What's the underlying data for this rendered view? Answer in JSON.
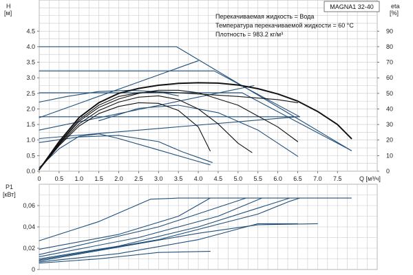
{
  "model_label": "MAGNA1 32-40",
  "annotations": [
    "Перекачиваемая жидкость = Вода",
    "Температура перекачиваемой жидкости = 60 °C",
    "Плотность = 983.2 кг/м³"
  ],
  "colors": {
    "blue": "#1f4e79",
    "black": "#111111",
    "grid": "#c8c8c8",
    "frame": "#888888"
  },
  "chart_data": [
    {
      "type": "line",
      "name": "head_efficiency",
      "xlabel": "Q [м³/ч]",
      "ylabel_left": [
        "H",
        "[м]"
      ],
      "ylabel_right": [
        "eta",
        "[%]"
      ],
      "xlim": [
        0,
        8.5
      ],
      "ylim": [
        0,
        5.5
      ],
      "y2lim": [
        0,
        110
      ],
      "xticks": [
        "0",
        "0.5",
        "1.0",
        "1.5",
        "2.0",
        "2.5",
        "3.0",
        "3.5",
        "4.0",
        "4.5",
        "5.0",
        "5.5",
        "6.0",
        "6.5",
        "7.0",
        "7.5"
      ],
      "xtick_values": [
        0,
        0.5,
        1.0,
        1.5,
        2.0,
        2.5,
        3.0,
        3.5,
        4.0,
        4.5,
        5.0,
        5.5,
        6.0,
        6.5,
        7.0,
        7.5
      ],
      "yticks": [
        "0.0",
        "0.5",
        "1.0",
        "1.5",
        "2.0",
        "2.5",
        "3.0",
        "3.5",
        "4.0",
        "4.5"
      ],
      "ytick_values": [
        0,
        0.5,
        1.0,
        1.5,
        2.0,
        2.5,
        3.0,
        3.5,
        4.0,
        4.5
      ],
      "y2ticks": [
        "0",
        "10",
        "20",
        "30",
        "40",
        "50",
        "60",
        "70",
        "80",
        "90"
      ],
      "y2tick_values": [
        0,
        10,
        20,
        30,
        40,
        50,
        60,
        70,
        80,
        90
      ],
      "grid": true,
      "series": [
        {
          "color": "blue",
          "axis": "left",
          "points": [
            [
              0,
              4.0
            ],
            [
              3.45,
              4.0
            ],
            [
              7.85,
              0.66
            ]
          ]
        },
        {
          "color": "blue",
          "axis": "left",
          "points": [
            [
              0,
              3.22
            ],
            [
              4.4,
              3.22
            ],
            [
              6.55,
              1.75
            ]
          ]
        },
        {
          "color": "blue",
          "axis": "left",
          "points": [
            [
              0,
              2.52
            ],
            [
              5.1,
              2.52
            ],
            [
              7.85,
              0.66
            ]
          ]
        },
        {
          "color": "blue",
          "axis": "left",
          "points": [
            [
              0,
              1.75
            ],
            [
              6.55,
              1.75
            ]
          ]
        },
        {
          "color": "blue",
          "axis": "left",
          "points": [
            [
              0,
              1.72
            ],
            [
              4.0,
              3.55
            ]
          ]
        },
        {
          "color": "blue",
          "axis": "left",
          "points": [
            [
              0,
              2.22
            ],
            [
              0.7,
              2.4
            ],
            [
              1.5,
              2.56
            ],
            [
              2.3,
              2.6
            ],
            [
              3.0,
              2.55
            ],
            [
              3.5,
              2.42
            ]
          ]
        },
        {
          "color": "blue",
          "axis": "left",
          "points": [
            [
              0,
              1.32
            ],
            [
              5.4,
              2.75
            ]
          ]
        },
        {
          "color": "blue",
          "axis": "left",
          "points": [
            [
              0,
              1.05
            ],
            [
              6.5,
              1.75
            ]
          ]
        },
        {
          "color": "blue",
          "axis": "left",
          "points": [
            [
              0,
              0.92
            ],
            [
              1.0,
              1.1
            ],
            [
              2.0,
              1.15
            ],
            [
              3.0,
              0.95
            ],
            [
              3.6,
              0.62
            ],
            [
              4.2,
              0.35
            ],
            [
              4.35,
              0.28
            ]
          ]
        },
        {
          "color": "blue",
          "axis": "left",
          "points": [
            [
              0,
              0.12
            ],
            [
              0.5,
              0.72
            ],
            [
              1.0,
              1.12
            ],
            [
              1.5,
              1.2
            ],
            [
              2.0,
              1.05
            ],
            [
              3.0,
              0.68
            ],
            [
              4.3,
              0.2
            ]
          ]
        },
        {
          "color": "blue",
          "axis": "left",
          "points": [
            [
              1.5,
              1.62
            ],
            [
              2.5,
              2.02
            ],
            [
              3.5,
              2.12
            ],
            [
              4.5,
              1.88
            ],
            [
              5.5,
              1.32
            ],
            [
              6.5,
              0.48
            ]
          ]
        },
        {
          "color": "black",
          "axis": "left",
          "points": [
            [
              0,
              0.05
            ],
            [
              0.5,
              0.82
            ],
            [
              1.0,
              1.45
            ],
            [
              1.5,
              1.85
            ],
            [
              2.0,
              2.08
            ],
            [
              2.5,
              2.2
            ],
            [
              3.0,
              2.18
            ],
            [
              3.5,
              1.95
            ],
            [
              4.0,
              1.42
            ],
            [
              4.3,
              0.65
            ]
          ]
        },
        {
          "color": "black",
          "axis": "left",
          "points": [
            [
              0,
              0.05
            ],
            [
              0.5,
              0.85
            ],
            [
              1.0,
              1.52
            ],
            [
              1.5,
              1.95
            ],
            [
              2.0,
              2.22
            ],
            [
              2.5,
              2.38
            ],
            [
              3.0,
              2.42
            ],
            [
              3.5,
              2.3
            ],
            [
              4.0,
              2.0
            ],
            [
              4.5,
              1.52
            ],
            [
              5.0,
              0.9
            ],
            [
              5.35,
              0.6
            ]
          ]
        },
        {
          "color": "black",
          "axis": "left",
          "points": [
            [
              0,
              0.05
            ],
            [
              0.5,
              0.88
            ],
            [
              1.0,
              1.6
            ],
            [
              1.5,
              2.05
            ],
            [
              2.0,
              2.32
            ],
            [
              2.5,
              2.5
            ],
            [
              3.0,
              2.6
            ],
            [
              3.5,
              2.6
            ],
            [
              4.0,
              2.52
            ],
            [
              5.0,
              2.12
            ],
            [
              6.0,
              1.42
            ],
            [
              6.5,
              0.95
            ]
          ]
        },
        {
          "color": "black",
          "axis": "left",
          "points": [
            [
              0,
              0.05
            ],
            [
              0.5,
              0.9
            ],
            [
              1.0,
              1.65
            ],
            [
              1.5,
              2.12
            ],
            [
              2.0,
              2.4
            ],
            [
              2.5,
              2.52
            ],
            [
              3.0,
              2.55
            ],
            [
              3.5,
              2.52
            ],
            [
              4.0,
              2.48
            ],
            [
              5.0,
              2.4
            ],
            [
              6.0,
              2.3
            ],
            [
              6.5,
              2.2
            ]
          ]
        },
        {
          "color": "black",
          "axis": "left",
          "width": 2.0,
          "points": [
            [
              0,
              0.05
            ],
            [
              0.5,
              0.95
            ],
            [
              1.0,
              1.72
            ],
            [
              1.5,
              2.2
            ],
            [
              2.0,
              2.5
            ],
            [
              2.5,
              2.66
            ],
            [
              3.0,
              2.76
            ],
            [
              3.5,
              2.82
            ],
            [
              4.0,
              2.84
            ],
            [
              4.5,
              2.83
            ],
            [
              5.0,
              2.77
            ],
            [
              5.5,
              2.65
            ],
            [
              6.0,
              2.48
            ],
            [
              6.5,
              2.25
            ],
            [
              7.0,
              1.92
            ],
            [
              7.5,
              1.5
            ],
            [
              7.85,
              1.05
            ]
          ]
        }
      ]
    },
    {
      "type": "line",
      "name": "power",
      "xlabel": "",
      "ylabel_left": [
        "P1",
        "[кВт]"
      ],
      "xlim": [
        0,
        8.5
      ],
      "ylim": [
        0,
        0.08
      ],
      "yticks": [
        "0",
        "0,02",
        "0,04",
        "0,06"
      ],
      "ytick_values": [
        0,
        0.02,
        0.04,
        0.06
      ],
      "grid": true,
      "series": [
        {
          "color": "blue",
          "axis": "left",
          "points": [
            [
              0,
              0.027
            ],
            [
              1.5,
              0.045
            ],
            [
              2.8,
              0.066
            ],
            [
              3.5,
              0.067
            ],
            [
              7.85,
              0.067
            ]
          ]
        },
        {
          "color": "blue",
          "axis": "left",
          "points": [
            [
              0,
              0.019
            ],
            [
              2.0,
              0.033
            ],
            [
              3.5,
              0.05
            ],
            [
              4.3,
              0.067
            ]
          ]
        },
        {
          "color": "blue",
          "axis": "left",
          "points": [
            [
              0,
              0.014
            ],
            [
              3.0,
              0.04
            ],
            [
              5.2,
              0.067
            ]
          ]
        },
        {
          "color": "blue",
          "axis": "left",
          "points": [
            [
              0,
              0.012
            ],
            [
              2.5,
              0.03
            ],
            [
              4.5,
              0.05
            ],
            [
              5.6,
              0.067
            ]
          ]
        },
        {
          "color": "blue",
          "axis": "left",
          "points": [
            [
              0,
              0.01
            ],
            [
              2.0,
              0.022
            ],
            [
              4.0,
              0.04
            ],
            [
              6.3,
              0.067
            ]
          ]
        },
        {
          "color": "blue",
          "axis": "left",
          "points": [
            [
              0,
              0.009
            ],
            [
              3.0,
              0.028
            ],
            [
              5.5,
              0.052
            ],
            [
              6.3,
              0.064
            ],
            [
              6.55,
              0.067
            ]
          ]
        },
        {
          "color": "blue",
          "axis": "left",
          "points": [
            [
              0,
              0.008
            ],
            [
              2.0,
              0.021
            ],
            [
              4.0,
              0.034
            ],
            [
              5.5,
              0.042
            ],
            [
              7.0,
              0.043
            ]
          ]
        },
        {
          "color": "blue",
          "axis": "left",
          "points": [
            [
              0,
              0.007
            ],
            [
              2.0,
              0.015
            ],
            [
              4.0,
              0.028
            ],
            [
              5.5,
              0.043
            ],
            [
              6.5,
              0.043
            ]
          ]
        },
        {
          "color": "blue",
          "axis": "left",
          "points": [
            [
              0,
              0.006
            ],
            [
              1.5,
              0.01
            ],
            [
              3.0,
              0.016
            ],
            [
              4.3,
              0.017
            ]
          ]
        }
      ]
    }
  ]
}
